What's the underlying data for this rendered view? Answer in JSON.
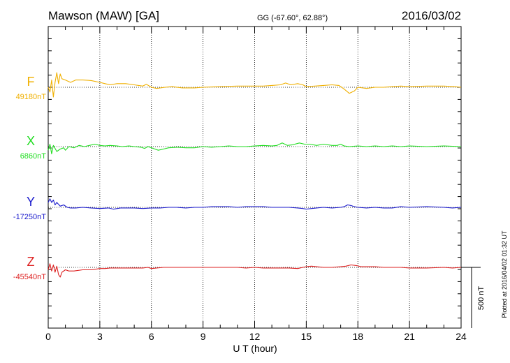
{
  "header": {
    "station": "Mawson (MAW)  [GA]",
    "coords": "GG (-67.60°,  62.88°)",
    "date": "2016/03/02"
  },
  "plot_note": "Plotted at 2016/04/02 01:32 UT",
  "chart_data": {
    "type": "line",
    "xlabel": "U T (hour)",
    "xlim": [
      0,
      24
    ],
    "xticks": [
      "0",
      "3",
      "6",
      "9",
      "12",
      "15",
      "18",
      "21",
      "24"
    ],
    "scale_bar": {
      "label": "500 nT",
      "value_nT": 500
    },
    "grid": "dotted vertical lines every 3 h; dotted baseline per trace",
    "series": [
      {
        "name": "F",
        "baseline_label": "49180nT",
        "color": "#f0b000",
        "points": [
          [
            0.0,
            0
          ],
          [
            0.1,
            -40
          ],
          [
            0.2,
            60
          ],
          [
            0.3,
            -80
          ],
          [
            0.4,
            40
          ],
          [
            0.5,
            120
          ],
          [
            0.6,
            30
          ],
          [
            0.7,
            110
          ],
          [
            0.8,
            70
          ],
          [
            1.0,
            60
          ],
          [
            1.3,
            40
          ],
          [
            1.6,
            60
          ],
          [
            2.0,
            60
          ],
          [
            2.5,
            55
          ],
          [
            3.0,
            40
          ],
          [
            3.3,
            30
          ],
          [
            3.6,
            20
          ],
          [
            4.0,
            30
          ],
          [
            4.5,
            30
          ],
          [
            5.0,
            20
          ],
          [
            5.5,
            10
          ],
          [
            5.7,
            25
          ],
          [
            6.0,
            0
          ],
          [
            6.3,
            -10
          ],
          [
            6.8,
            0
          ],
          [
            7.2,
            5
          ],
          [
            7.8,
            -5
          ],
          [
            8.5,
            -5
          ],
          [
            9.0,
            0
          ],
          [
            10.0,
            5
          ],
          [
            11.0,
            10
          ],
          [
            12.0,
            10
          ],
          [
            12.5,
            10
          ],
          [
            13.0,
            15
          ],
          [
            13.5,
            20
          ],
          [
            13.8,
            35
          ],
          [
            14.1,
            20
          ],
          [
            14.5,
            30
          ],
          [
            14.8,
            20
          ],
          [
            15.0,
            5
          ],
          [
            15.5,
            10
          ],
          [
            16.0,
            15
          ],
          [
            16.5,
            20
          ],
          [
            16.9,
            15
          ],
          [
            17.2,
            -15
          ],
          [
            17.5,
            -50
          ],
          [
            17.8,
            -30
          ],
          [
            18.0,
            0
          ],
          [
            18.5,
            -10
          ],
          [
            19.0,
            0
          ],
          [
            19.5,
            0
          ],
          [
            20.0,
            5
          ],
          [
            20.5,
            10
          ],
          [
            21.0,
            5
          ],
          [
            22.0,
            10
          ],
          [
            23.0,
            10
          ],
          [
            23.6,
            5
          ],
          [
            24.0,
            0
          ]
        ]
      },
      {
        "name": "X",
        "baseline_label": "6860nT",
        "color": "#22dd22",
        "points": [
          [
            0.0,
            -30
          ],
          [
            0.1,
            20
          ],
          [
            0.2,
            -60
          ],
          [
            0.3,
            10
          ],
          [
            0.5,
            -40
          ],
          [
            0.7,
            -20
          ],
          [
            0.9,
            -10
          ],
          [
            1.0,
            -30
          ],
          [
            1.2,
            0
          ],
          [
            1.5,
            -10
          ],
          [
            1.8,
            10
          ],
          [
            2.1,
            0
          ],
          [
            2.4,
            10
          ],
          [
            2.7,
            20
          ],
          [
            3.0,
            10
          ],
          [
            3.3,
            5
          ],
          [
            3.6,
            10
          ],
          [
            4.0,
            5
          ],
          [
            4.3,
            0
          ],
          [
            4.7,
            5
          ],
          [
            5.0,
            0
          ],
          [
            5.4,
            -5
          ],
          [
            5.6,
            -15
          ],
          [
            5.8,
            0
          ],
          [
            6.0,
            -10
          ],
          [
            6.2,
            -20
          ],
          [
            6.4,
            -30
          ],
          [
            6.7,
            -20
          ],
          [
            7.0,
            -10
          ],
          [
            7.5,
            -5
          ],
          [
            8.0,
            -10
          ],
          [
            8.5,
            -10
          ],
          [
            9.0,
            0
          ],
          [
            9.5,
            -5
          ],
          [
            10.0,
            0
          ],
          [
            10.5,
            5
          ],
          [
            11.0,
            0
          ],
          [
            11.5,
            0
          ],
          [
            12.0,
            5
          ],
          [
            12.5,
            10
          ],
          [
            13.0,
            5
          ],
          [
            13.3,
            10
          ],
          [
            13.6,
            30
          ],
          [
            13.9,
            10
          ],
          [
            14.2,
            15
          ],
          [
            14.6,
            30
          ],
          [
            14.9,
            20
          ],
          [
            15.2,
            20
          ],
          [
            15.6,
            10
          ],
          [
            16.0,
            20
          ],
          [
            16.5,
            10
          ],
          [
            16.8,
            10
          ],
          [
            17.0,
            20
          ],
          [
            17.2,
            5
          ],
          [
            17.5,
            0
          ],
          [
            18.0,
            5
          ],
          [
            18.5,
            0
          ],
          [
            19.0,
            5
          ],
          [
            19.5,
            0
          ],
          [
            20.0,
            5
          ],
          [
            20.5,
            0
          ],
          [
            21.0,
            5
          ],
          [
            22.0,
            0
          ],
          [
            23.0,
            5
          ],
          [
            24.0,
            0
          ]
        ]
      },
      {
        "name": "Y",
        "baseline_label": "-17250nT",
        "color": "#1a1acc",
        "points": [
          [
            0.0,
            40
          ],
          [
            0.1,
            70
          ],
          [
            0.2,
            40
          ],
          [
            0.3,
            60
          ],
          [
            0.4,
            20
          ],
          [
            0.5,
            40
          ],
          [
            0.7,
            10
          ],
          [
            0.9,
            20
          ],
          [
            1.1,
            0
          ],
          [
            1.3,
            -5
          ],
          [
            1.6,
            -5
          ],
          [
            2.0,
            0
          ],
          [
            2.5,
            -5
          ],
          [
            3.0,
            -10
          ],
          [
            3.5,
            -5
          ],
          [
            3.8,
            -15
          ],
          [
            4.2,
            -5
          ],
          [
            4.5,
            -5
          ],
          [
            5.0,
            -5
          ],
          [
            5.5,
            -10
          ],
          [
            6.0,
            -5
          ],
          [
            6.5,
            -5
          ],
          [
            7.0,
            0
          ],
          [
            7.5,
            0
          ],
          [
            8.0,
            -5
          ],
          [
            8.5,
            0
          ],
          [
            9.0,
            0
          ],
          [
            9.5,
            5
          ],
          [
            10.0,
            5
          ],
          [
            10.5,
            5
          ],
          [
            11.0,
            0
          ],
          [
            11.5,
            5
          ],
          [
            12.0,
            5
          ],
          [
            12.5,
            5
          ],
          [
            13.0,
            0
          ],
          [
            13.5,
            0
          ],
          [
            14.0,
            0
          ],
          [
            14.5,
            -5
          ],
          [
            14.8,
            -10
          ],
          [
            15.0,
            -15
          ],
          [
            15.3,
            -10
          ],
          [
            15.6,
            -5
          ],
          [
            16.0,
            0
          ],
          [
            16.5,
            -5
          ],
          [
            17.0,
            0
          ],
          [
            17.2,
            5
          ],
          [
            17.4,
            20
          ],
          [
            17.6,
            15
          ],
          [
            17.8,
            5
          ],
          [
            18.0,
            0
          ],
          [
            18.5,
            -5
          ],
          [
            19.0,
            0
          ],
          [
            19.5,
            -5
          ],
          [
            20.0,
            -5
          ],
          [
            20.5,
            5
          ],
          [
            21.0,
            0
          ],
          [
            22.0,
            5
          ],
          [
            23.0,
            0
          ],
          [
            23.5,
            -5
          ],
          [
            24.0,
            0
          ]
        ]
      },
      {
        "name": "Z",
        "baseline_label": "-45540nT",
        "color": "#dd2020",
        "points": [
          [
            0.0,
            -20
          ],
          [
            0.1,
            30
          ],
          [
            0.2,
            -30
          ],
          [
            0.3,
            20
          ],
          [
            0.4,
            -40
          ],
          [
            0.5,
            10
          ],
          [
            0.6,
            -60
          ],
          [
            0.7,
            -80
          ],
          [
            0.8,
            -40
          ],
          [
            1.0,
            -20
          ],
          [
            1.2,
            -30
          ],
          [
            1.5,
            -30
          ],
          [
            2.0,
            -20
          ],
          [
            2.5,
            -20
          ],
          [
            3.0,
            -10
          ],
          [
            3.3,
            -10
          ],
          [
            3.6,
            -5
          ],
          [
            4.0,
            -5
          ],
          [
            4.5,
            -5
          ],
          [
            5.0,
            -5
          ],
          [
            5.5,
            -5
          ],
          [
            5.8,
            0
          ],
          [
            6.0,
            -10
          ],
          [
            6.3,
            -5
          ],
          [
            6.7,
            0
          ],
          [
            7.0,
            0
          ],
          [
            7.5,
            0
          ],
          [
            8.0,
            0
          ],
          [
            8.5,
            0
          ],
          [
            9.0,
            0
          ],
          [
            9.5,
            0
          ],
          [
            10.0,
            0
          ],
          [
            10.5,
            0
          ],
          [
            11.0,
            0
          ],
          [
            11.5,
            -5
          ],
          [
            12.0,
            0
          ],
          [
            12.5,
            -5
          ],
          [
            13.0,
            -5
          ],
          [
            13.5,
            -5
          ],
          [
            14.0,
            -5
          ],
          [
            14.5,
            -10
          ],
          [
            14.8,
            0
          ],
          [
            15.0,
            5
          ],
          [
            15.3,
            10
          ],
          [
            15.6,
            5
          ],
          [
            16.0,
            0
          ],
          [
            16.5,
            0
          ],
          [
            17.0,
            5
          ],
          [
            17.3,
            10
          ],
          [
            17.6,
            20
          ],
          [
            17.9,
            15
          ],
          [
            18.2,
            5
          ],
          [
            18.5,
            5
          ],
          [
            19.0,
            5
          ],
          [
            19.5,
            0
          ],
          [
            20.0,
            0
          ],
          [
            20.5,
            0
          ],
          [
            21.0,
            -5
          ],
          [
            21.5,
            -5
          ],
          [
            22.0,
            -5
          ],
          [
            23.0,
            0
          ],
          [
            23.5,
            -5
          ],
          [
            24.0,
            0
          ]
        ]
      }
    ]
  }
}
